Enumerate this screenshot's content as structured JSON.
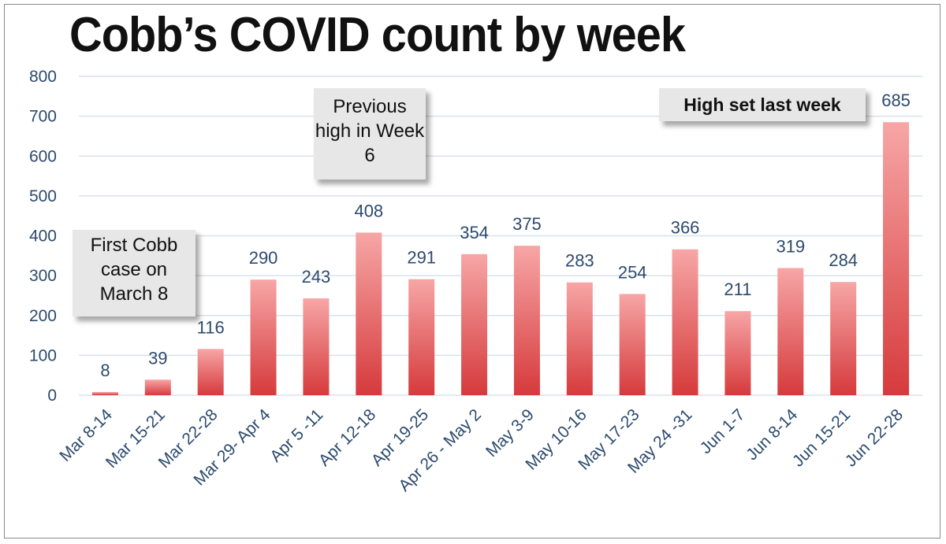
{
  "chart_data": {
    "type": "bar",
    "title": "Cobb’s COVID count by week",
    "xlabel": "",
    "ylabel": "",
    "ylim": [
      0,
      800
    ],
    "yticks": [
      0,
      100,
      200,
      300,
      400,
      500,
      600,
      700,
      800
    ],
    "grid": true,
    "categories": [
      "Mar 8-14",
      "Mar 15-21",
      "Mar 22-28",
      "Mar 29- Apr 4",
      "Apr 5 -11",
      "Apr 12-18",
      "Apr 19-25",
      "Apr 26 - May 2",
      "May 3-9",
      "May 10-16",
      "May 17-23",
      "May 24 -31",
      "Jun 1-7",
      "Jun 8-14",
      "Jun 15-21",
      "Jun 22-28"
    ],
    "values": [
      8,
      39,
      116,
      290,
      243,
      408,
      291,
      354,
      375,
      283,
      254,
      366,
      211,
      319,
      284,
      685
    ],
    "bar_color_top": "#f7a6a6",
    "bar_color_bottom": "#d63a3c"
  },
  "annotations": {
    "first_case": "First Cobb case on March 8",
    "previous_high": "Previous high in Week 6",
    "high_last_week": "High set last week"
  },
  "colors": {
    "axis_text": "#2c4a6e",
    "gridline": "#d6e2ee",
    "callout_bg": "#e7e7e7"
  }
}
